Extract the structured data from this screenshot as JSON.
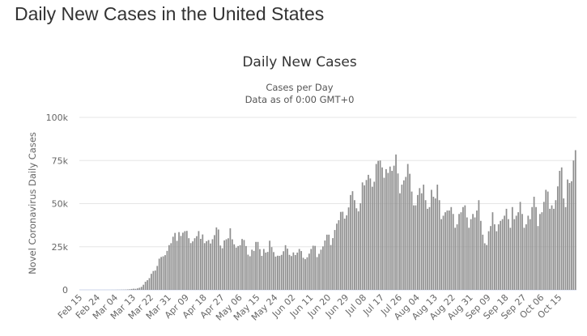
{
  "page": {
    "title": "Daily New Cases in the United States"
  },
  "chart_data": {
    "type": "bar",
    "title": "Daily New Cases",
    "subtitle": [
      "Cases per Day",
      "Data as of 0:00 GMT+0"
    ],
    "xlabel": "",
    "ylabel": "Novel Coronavirus Daily Cases",
    "ylim": [
      0,
      100000
    ],
    "yticks": [
      0,
      25000,
      50000,
      75000,
      100000
    ],
    "ytick_labels": [
      "0",
      "25k",
      "50k",
      "75k",
      "100k"
    ],
    "x_start": "Feb 15",
    "x_end": "Oct 23",
    "xtick_every": 9,
    "xtick_labels": [
      "Feb 15",
      "Feb 24",
      "Mar 04",
      "Mar 13",
      "Mar 22",
      "Mar 31",
      "Apr 09",
      "Apr 18",
      "Apr 27",
      "May 06",
      "May 15",
      "May 24",
      "Jun 02",
      "Jun 11",
      "Jun 20",
      "Jun 29",
      "Jul 08",
      "Jul 17",
      "Jul 26",
      "Aug 04",
      "Aug 13",
      "Aug 22",
      "Aug 31",
      "Sep 09",
      "Sep 18",
      "Sep 27",
      "Oct 06",
      "Oct 15"
    ],
    "grid": true,
    "bar_color": "#8f8f8f",
    "values": [
      0,
      0,
      0,
      0,
      0,
      0,
      1,
      0,
      0,
      0,
      3,
      0,
      3,
      0,
      7,
      8,
      25,
      20,
      31,
      70,
      57,
      114,
      107,
      150,
      250,
      313,
      518,
      652,
      595,
      854,
      1213,
      1739,
      2960,
      4707,
      5588,
      6823,
      9310,
      10932,
      11209,
      13870,
      18090,
      19063,
      19441,
      20125,
      22612,
      25929,
      27062,
      30803,
      33020,
      28427,
      33478,
      31271,
      33155,
      34016,
      34195,
      29957,
      27113,
      28119,
      29952,
      31133,
      34082,
      29574,
      32114,
      27071,
      28226,
      28860,
      26893,
      29380,
      31735,
      36200,
      35000,
      25700,
      24130,
      28690,
      29340,
      29910,
      35700,
      29300,
      26400,
      24500,
      25400,
      25900,
      29500,
      28900,
      25400,
      20400,
      19500,
      23300,
      22600,
      27800,
      27800,
      23600,
      19700,
      23700,
      21600,
      22000,
      28500,
      24800,
      21900,
      19300,
      19800,
      19700,
      20300,
      22400,
      25900,
      23900,
      20300,
      19600,
      21700,
      20200,
      21600,
      23700,
      22500,
      18600,
      17800,
      18900,
      21000,
      23700,
      25600,
      25500,
      19000,
      20900,
      23300,
      25200,
      28600,
      32000,
      32000,
      26000,
      30000,
      34700,
      38400,
      40400,
      45200,
      45300,
      41300,
      43200,
      47800,
      55000,
      57200,
      52000,
      47300,
      45500,
      50200,
      62300,
      60600,
      63700,
      66700,
      64600,
      59800,
      62700,
      73000,
      74800,
      75000,
      71000,
      65000,
      70000,
      67800,
      71500,
      69000,
      72000,
      78500,
      67500,
      56000,
      61000,
      63500,
      65500,
      73000,
      67300,
      57000,
      49000,
      49000,
      55000,
      59000,
      56000,
      61000,
      52000,
      47000,
      48000,
      58000,
      54000,
      53000,
      61000,
      52000,
      41000,
      43000,
      45000,
      46000,
      46000,
      48000,
      44000,
      36000,
      38000,
      44000,
      45000,
      48000,
      49000,
      42000,
      36000,
      41000,
      44000,
      42000,
      46000,
      52000,
      40000,
      32000,
      27000,
      26000,
      34000,
      37000,
      45000,
      38000,
      34000,
      38000,
      40000,
      41000,
      43000,
      47000,
      41000,
      36000,
      48000,
      41000,
      43000,
      45000,
      51000,
      44000,
      36000,
      38000,
      43000,
      41000,
      48000,
      54000,
      48000,
      37000,
      44000,
      45000,
      51000,
      58000,
      57000,
      47000,
      49000,
      47000,
      52000,
      60000,
      69000,
      71000,
      53000,
      48000,
      64000,
      62000,
      63000,
      75000,
      81000
    ]
  }
}
